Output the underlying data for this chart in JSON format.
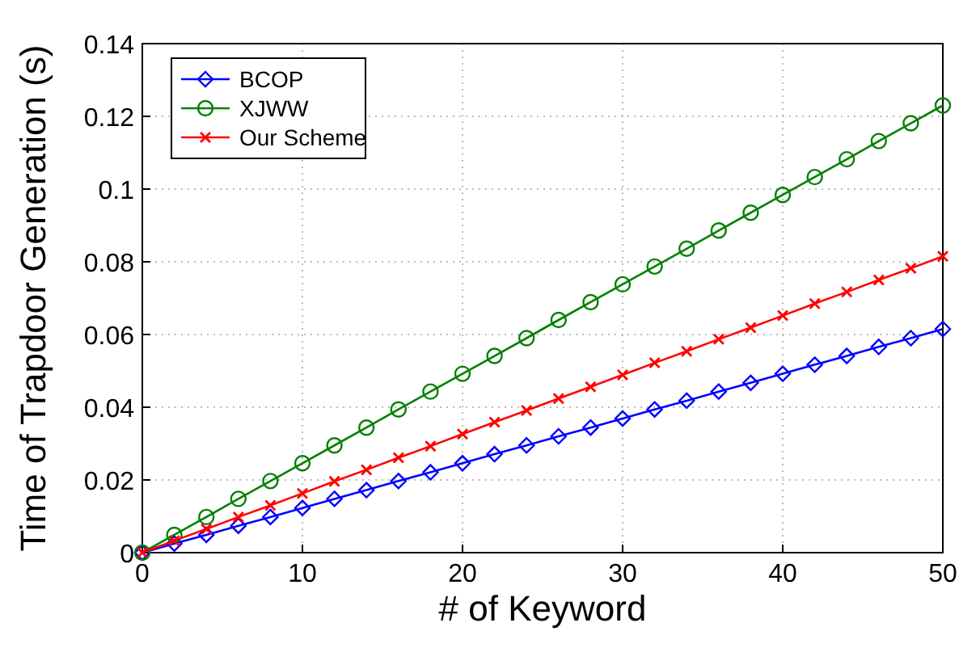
{
  "chart_data": {
    "type": "line",
    "xlabel": "# of Keyword",
    "ylabel": "Time of Trapdoor Generation (s)",
    "x": [
      0,
      2,
      4,
      6,
      8,
      10,
      12,
      14,
      16,
      18,
      20,
      22,
      24,
      26,
      28,
      30,
      32,
      34,
      36,
      38,
      40,
      42,
      44,
      46,
      48,
      50
    ],
    "series": [
      {
        "name": "BCOP",
        "color": "#0000ff",
        "marker": "diamond",
        "values": [
          0,
          0.0025,
          0.0049,
          0.0074,
          0.0098,
          0.0123,
          0.0148,
          0.0172,
          0.0197,
          0.0221,
          0.0246,
          0.0271,
          0.0295,
          0.032,
          0.0344,
          0.0369,
          0.0394,
          0.0418,
          0.0443,
          0.0467,
          0.0492,
          0.0517,
          0.0541,
          0.0566,
          0.059,
          0.0615
        ]
      },
      {
        "name": "XJWW",
        "color": "#008000",
        "marker": "circle",
        "values": [
          0,
          0.0049,
          0.0098,
          0.0148,
          0.0197,
          0.0246,
          0.0295,
          0.0344,
          0.0394,
          0.0443,
          0.0492,
          0.0541,
          0.059,
          0.064,
          0.0689,
          0.0738,
          0.0787,
          0.0836,
          0.0886,
          0.0935,
          0.0984,
          0.1033,
          0.1082,
          0.1132,
          0.1181,
          0.123
        ]
      },
      {
        "name": "Our Scheme",
        "color": "#ff0000",
        "marker": "cross",
        "values": [
          0,
          0.0033,
          0.0065,
          0.0098,
          0.013,
          0.0163,
          0.0196,
          0.0228,
          0.0261,
          0.0293,
          0.0326,
          0.0359,
          0.0391,
          0.0424,
          0.0456,
          0.0489,
          0.0522,
          0.0554,
          0.0587,
          0.0619,
          0.0652,
          0.0685,
          0.0717,
          0.075,
          0.0782,
          0.0815
        ]
      }
    ],
    "xlim": [
      0,
      50
    ],
    "xticks": [
      0,
      10,
      20,
      30,
      40,
      50
    ],
    "ylim": [
      0,
      0.14
    ],
    "yticks": [
      0,
      0.02,
      0.04,
      0.06,
      0.08,
      0.1,
      0.12,
      0.14
    ],
    "grid": true,
    "legend": "top left",
    "line_style": "solid"
  }
}
